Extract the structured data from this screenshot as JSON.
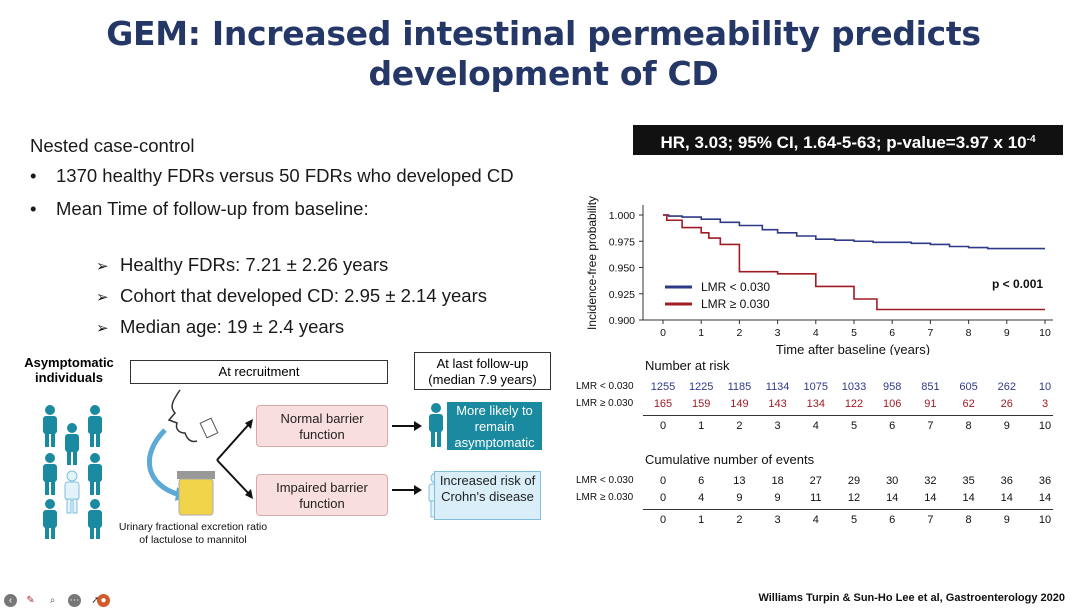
{
  "slide": {
    "title_line1": "GEM: Increased intestinal permeability predicts",
    "title_line2": "development of CD",
    "intro": "Nested case-control",
    "bullets": [
      "1370 healthy FDRs versus 50 FDRs who developed CD",
      "Mean Time of follow-up from baseline:"
    ],
    "subbullets": [
      "Healthy FDRs: 7.21 ± 2.26 years",
      "Cohort that developed CD: 2.95 ± 2.14 years",
      "Median age: 19 ± 2.4 years"
    ],
    "bullet_glyph": "•",
    "subbullet_glyph": "➢",
    "hr_text": "HR, 3.03; 95% CI, 1.64-5-63; p-value=3.97 x 10",
    "hr_exp": "-4",
    "citation": "Williams Turpin & Sun-Ho Lee  et al, Gastroenterology 2020"
  },
  "diagram": {
    "asymptomatic": "Asymptomatic individuals",
    "at_recruitment": "At recruitment",
    "at_last_followup_line1": "At last follow-up",
    "at_last_followup_line2": "(median 7.9 years)",
    "normal_barrier": "Normal barrier function",
    "impaired_barrier": "Impaired barrier function",
    "more_likely": "More likely to remain asymptomatic",
    "increased_risk": "Increased risk of Crohn's disease",
    "urinary_caption": "Urinary fractional excretion ratio of lactulose to mannitol"
  },
  "chart_data": {
    "type": "line",
    "title": "",
    "xlabel": "Time after baseline (years)",
    "ylabel": "Incidence-free probability",
    "xlim": [
      0,
      10
    ],
    "ylim": [
      0.9,
      1.0
    ],
    "xticks": [
      "0",
      "1",
      "2",
      "3",
      "4",
      "5",
      "6",
      "7",
      "8",
      "9",
      "10"
    ],
    "yticks": [
      "1.000",
      "0.975",
      "0.950",
      "0.925",
      "0.900"
    ],
    "annotation": "p < 0.001",
    "series": [
      {
        "name": "LMR < 0.030",
        "color": "#2e3a87",
        "x": [
          0,
          0.15,
          0.5,
          1.0,
          1.5,
          2.0,
          2.6,
          3.0,
          3.5,
          4.0,
          4.5,
          5.0,
          5.5,
          6.0,
          6.5,
          7.0,
          7.5,
          8.0,
          8.5,
          9.0,
          10.0
        ],
        "y": [
          1.0,
          0.999,
          0.998,
          0.996,
          0.993,
          0.99,
          0.986,
          0.983,
          0.98,
          0.977,
          0.976,
          0.975,
          0.974,
          0.974,
          0.973,
          0.972,
          0.97,
          0.969,
          0.968,
          0.968,
          0.968
        ]
      },
      {
        "name": "LMR ≥ 0.030",
        "color": "#a01c24",
        "x": [
          0,
          0.1,
          0.5,
          1.0,
          1.2,
          1.5,
          2.0,
          3.0,
          4.0,
          5.0,
          5.6,
          10.0
        ],
        "y": [
          1.0,
          0.995,
          0.988,
          0.983,
          0.978,
          0.972,
          0.946,
          0.944,
          0.932,
          0.92,
          0.91,
          0.91
        ]
      }
    ]
  },
  "risk_table": {
    "heading": "Number at risk",
    "rows": [
      {
        "label": "LMR < 0.030",
        "color": "#2e3a87",
        "values": [
          "1255",
          "1225",
          "1185",
          "1134",
          "1075",
          "1033",
          "958",
          "851",
          "605",
          "262",
          "10"
        ]
      },
      {
        "label": "LMR ≥ 0.030",
        "color": "#a01c24",
        "values": [
          "165",
          "159",
          "149",
          "143",
          "134",
          "122",
          "106",
          "91",
          "62",
          "26",
          "3"
        ]
      }
    ],
    "axis": [
      "0",
      "1",
      "2",
      "3",
      "4",
      "5",
      "6",
      "7",
      "8",
      "9",
      "10"
    ]
  },
  "events_table": {
    "heading": "Cumulative number of events",
    "rows": [
      {
        "label": "LMR < 0.030",
        "values": [
          "0",
          "6",
          "13",
          "18",
          "27",
          "29",
          "30",
          "32",
          "35",
          "36",
          "36"
        ]
      },
      {
        "label": "LMR ≥ 0.030",
        "values": [
          "0",
          "4",
          "9",
          "9",
          "11",
          "12",
          "14",
          "14",
          "14",
          "14",
          "14"
        ]
      }
    ],
    "axis": [
      "0",
      "1",
      "2",
      "3",
      "4",
      "5",
      "6",
      "7",
      "8",
      "9",
      "10"
    ]
  },
  "toolbar": {
    "icons": [
      "back-icon",
      "pen-icon",
      "zoom-icon",
      "more-icon",
      "pointer-icon"
    ]
  }
}
